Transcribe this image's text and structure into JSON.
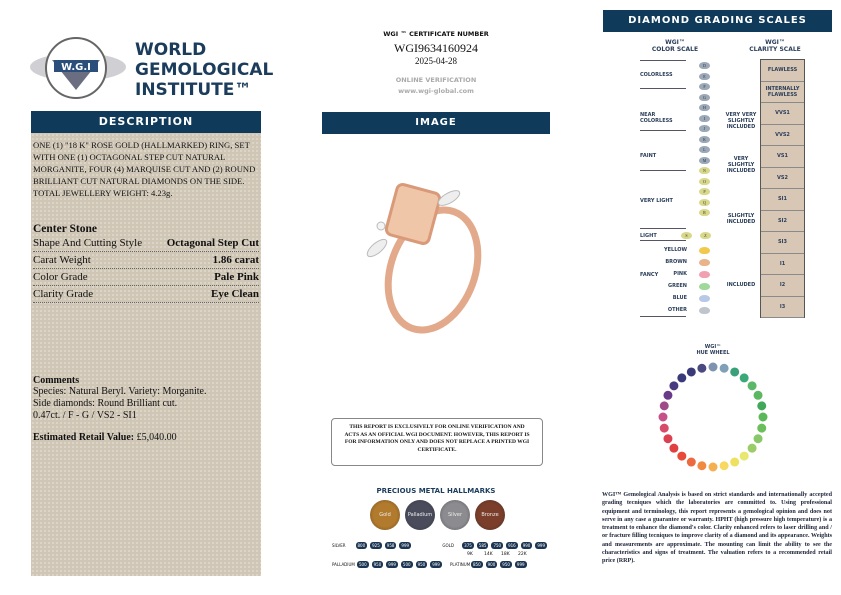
{
  "logo": {
    "lines": [
      "WORLD",
      "GEMOLOGICAL",
      "INSTITUTE™"
    ],
    "seal_text": "WORLD GEMOLOGICAL INSTITUTE W.G.I"
  },
  "description": {
    "header": "DESCRIPTION",
    "text": "ONE (1) \"18 K\" ROSE GOLD (HALLMARKED) RING, SET WITH ONE (1) OCTAGONAL STEP CUT NATURAL MORGANITE, FOUR (4) MARQUISE CUT AND (2) ROUND BRILLIANT CUT NATURAL DIAMONDS ON THE SIDE. TOTAL JEWELLERY WEIGHT: 4.23g.",
    "center_stone_title": "Center Stone",
    "rows": [
      {
        "label": "Shape And Cutting Style",
        "value": "Octagonal Step Cut"
      },
      {
        "label": "Carat Weight",
        "value": "1.86 carat"
      },
      {
        "label": "Color Grade",
        "value": "Pale Pink"
      },
      {
        "label": "Clarity Grade",
        "value": "Eye Clean"
      }
    ],
    "comments_title": "Comments",
    "comments": [
      "Species: Natural Beryl. Variety: Morganite.",
      "Side diamonds: Round Brilliant cut.",
      "0.47ct. / F - G / VS2 - SI1"
    ],
    "retail_label": "Estimated Retail Value:",
    "retail_value": "£5,040.00"
  },
  "certificate": {
    "label": "WGI ™ CERTIFICATE NUMBER",
    "number": "WGI9634160924",
    "date": "2025-04-28",
    "verify_label": "ONLINE VERIFICATION",
    "verify_url": "www.wgi-global.com"
  },
  "image": {
    "header": "IMAGE"
  },
  "notice": "THIS REPORT IS EXCLUSIVELY FOR ONLINE VERIFICATION AND ACTS AS AN OFFICIAL WGI DOCUMENT. HOWEVER, THIS REPORT IS FOR INFORMATION ONLY AND DOES NOT REPLACE A PRINTED WGI CERTIFICATE.",
  "hallmarks": {
    "title": "PRECIOUS METAL HALLMARKS",
    "coins": [
      {
        "label": "Gold",
        "color": "#b27a2c"
      },
      {
        "label": "Palladium",
        "color": "#4a4c5c"
      },
      {
        "label": "Silver",
        "color": "#8c8c90"
      },
      {
        "label": "Bronze",
        "color": "#7a3e2a"
      }
    ],
    "silver_label": "SILVER",
    "silver": [
      "800",
      "925",
      "958",
      "999"
    ],
    "palladium_label": "PALLADIUM",
    "palladium": [
      "500",
      "950",
      "999",
      "500",
      "950",
      "999"
    ],
    "gold_label": "GOLD",
    "gold": [
      "375",
      "585",
      "750",
      "916",
      "990",
      "999"
    ],
    "gold_karats": [
      "9K",
      "14K",
      "18K",
      "22K"
    ],
    "platinum_label": "PLATINUM",
    "platinum": [
      "850",
      "900",
      "950",
      "999"
    ]
  },
  "scales": {
    "header": "DIAMOND GRADING SCALES",
    "color_title": [
      "WGI™",
      "COLOR SCALE"
    ],
    "clarity_title": [
      "WGI™",
      "CLARITY SCALE"
    ],
    "color_groups": [
      "COLORLESS",
      "NEAR COLORLESS",
      "FAINT",
      "VERY LIGHT",
      "LIGHT",
      "FANCY"
    ],
    "color_letters": [
      "D",
      "E",
      "F",
      "G",
      "H",
      "I",
      "J",
      "K",
      "L",
      "M",
      "N",
      "O",
      "P",
      "Q",
      "R",
      "S",
      "Z"
    ],
    "fancy": [
      {
        "label": "YELLOW",
        "color": "#f2c94c"
      },
      {
        "label": "BROWN",
        "color": "#e8b48a"
      },
      {
        "label": "PINK",
        "color": "#f0a0b0"
      },
      {
        "label": "GREEN",
        "color": "#9fd89a"
      },
      {
        "label": "BLUE",
        "color": "#b8c8e8"
      },
      {
        "label": "OTHER",
        "color": "#c0c4cc"
      }
    ],
    "clarity_groups": [
      "VERY VERY SLIGHTLY INCLUDED",
      "VERY SLIGHTLY INCLUDED",
      "SLIGHTLY INCLUDED",
      "INCLUDED"
    ],
    "clarity": [
      "FLAWLESS",
      "INTERNALLY FLAWLESS",
      "VVS1",
      "VVS2",
      "VS1",
      "VS2",
      "SI1",
      "SI2",
      "SI3",
      "I1",
      "I2",
      "I3"
    ]
  },
  "hue_wheel": {
    "title": [
      "WGI™",
      "HUE WHEEL"
    ],
    "colors": [
      "#7f93b0",
      "#7fa0b8",
      "#3aa07a",
      "#3aa878",
      "#5ab868",
      "#5cb860",
      "#40a858",
      "#5ab858",
      "#6abf5c",
      "#88c868",
      "#9ccc6a",
      "#e8e870",
      "#f0e060",
      "#f8d860",
      "#f4b050",
      "#f08a40",
      "#ec6a40",
      "#e84a3a",
      "#e04040",
      "#dc4050",
      "#d84a6a",
      "#c85088",
      "#a04a8a",
      "#6a3a88",
      "#4a3a80",
      "#3a3a7a",
      "#3a3a78",
      "#4a4a80"
    ]
  },
  "disclaimer": "WGI™ Gemological Analysis is based on strict standards and internationally accepted grading tecniques which the laboratories are committed to. Using professional equipment and terminology, this report represents a gemological opinion and does not serve in any case a guarantee or warranty. HPHT (high pressure high temperature) is a treatment to enhance the diamond's color. Clarity enhanced refers to laser drilling and / or fracture filling tecniques to improve clarity of a diamond and its appearance. Weights and measurements are approximate. The mounting can limit the ability to see the characteristics and signs of treatment. The valuation refers to a recommended retail price (RRP)."
}
